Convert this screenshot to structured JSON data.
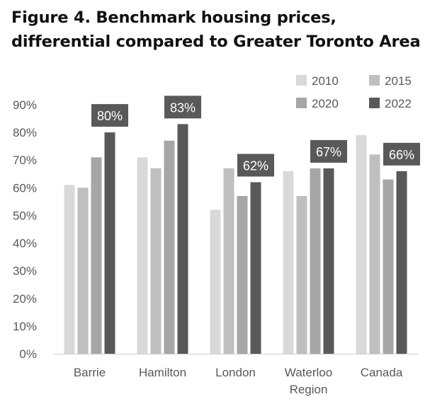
{
  "title_lines": [
    "Figure 4. Benchmark housing prices,",
    "differential compared to Greater Toronto Area"
  ],
  "chart_data": {
    "type": "bar",
    "title": "Figure 4. Benchmark housing prices, differential compared to Greater Toronto Area",
    "categories": [
      [
        "Barrie"
      ],
      [
        "Hamilton"
      ],
      [
        "London"
      ],
      [
        "Waterloo",
        "Region"
      ],
      [
        "Canada"
      ]
    ],
    "series": [
      {
        "name": "2010",
        "color": "#d9d9d9",
        "values": [
          61,
          71,
          52,
          66,
          79
        ]
      },
      {
        "name": "2015",
        "color": "#bfbfbf",
        "values": [
          60,
          67,
          67,
          57,
          72
        ]
      },
      {
        "name": "2020",
        "color": "#a6a6a6",
        "values": [
          71,
          77,
          57,
          67,
          63
        ]
      },
      {
        "name": "2022",
        "color": "#595959",
        "values": [
          80,
          83,
          62,
          67,
          66
        ]
      }
    ],
    "data_labels": [
      "80%",
      "83%",
      "62%",
      "67%",
      "66%"
    ],
    "data_label_series": "2022",
    "y_ticks": [
      "0%",
      "10%",
      "20%",
      "30%",
      "40%",
      "50%",
      "60%",
      "70%",
      "80%",
      "90%"
    ],
    "ylim": [
      0,
      90
    ],
    "xlabel": "",
    "ylabel": "",
    "grid": false,
    "legend_position": "top-right",
    "legend_columns": 2
  }
}
